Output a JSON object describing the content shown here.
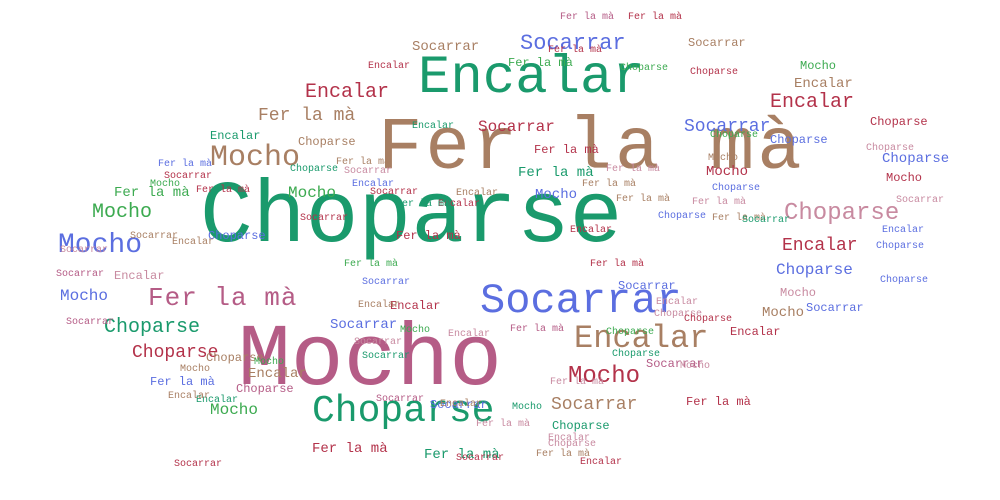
{
  "colors": {
    "green": "#1a9a6c",
    "brown": "#a87f63",
    "mauve": "#b55c86",
    "crimson": "#b3324a",
    "blue": "#5b6ee0",
    "pink": "#c88aa0",
    "lightgreen": "#3caa50"
  },
  "words": [
    {
      "text": "Choparse",
      "color": "green"
    },
    {
      "text": "Mocho",
      "color": "mauve"
    },
    {
      "text": "Fer la mà",
      "color": "brown"
    },
    {
      "text": "Encalar",
      "color": "green"
    },
    {
      "text": "Socarrar",
      "color": "blue"
    },
    {
      "text": "Choparse",
      "color": "green"
    },
    {
      "text": "Encalar",
      "color": "brown"
    },
    {
      "text": "Mocho",
      "color": "brown"
    },
    {
      "text": "Fer la mà",
      "color": "mauve"
    },
    {
      "text": "Choparse",
      "color": "pink"
    },
    {
      "text": "Mocho",
      "color": "blue"
    },
    {
      "text": "Mocho",
      "color": "crimson"
    },
    {
      "text": "Socarrar",
      "color": "blue"
    },
    {
      "text": "Encalar",
      "color": "crimson"
    },
    {
      "text": "Encalar",
      "color": "crimson"
    },
    {
      "text": "Choparse",
      "color": "green"
    },
    {
      "text": "Choparse",
      "color": "crimson"
    },
    {
      "text": "Mocho",
      "color": "lightgreen"
    },
    {
      "text": "Fer la mà",
      "color": "brown"
    },
    {
      "text": "Socarrar",
      "color": "crimson"
    },
    {
      "text": "Socarrar",
      "color": "blue"
    },
    {
      "text": "Encalar",
      "color": "crimson"
    },
    {
      "text": "Socarrar",
      "color": "brown"
    },
    {
      "text": "Choparse",
      "color": "blue"
    },
    {
      "text": "Mocho",
      "color": "lightgreen"
    },
    {
      "text": "Mocho",
      "color": "blue"
    },
    {
      "text": "Mocho",
      "color": "lightgreen"
    },
    {
      "text": "Socarrar",
      "color": "brown"
    },
    {
      "text": "Fer la mà",
      "color": "crimson"
    },
    {
      "text": "Socarrar",
      "color": "brown"
    },
    {
      "text": "Choparse",
      "color": "brown"
    },
    {
      "text": "Mocho",
      "color": "lightgreen"
    },
    {
      "text": "Fer la mà",
      "color": "lightgreen"
    },
    {
      "text": "Fer la mà",
      "color": "green"
    },
    {
      "text": "Mocho",
      "color": "crimson"
    },
    {
      "text": "Choparse",
      "color": "blue"
    },
    {
      "text": "Mocho",
      "color": "blue"
    },
    {
      "text": "Mocho",
      "color": "crimson"
    },
    {
      "text": "Encalar",
      "color": "brown"
    },
    {
      "text": "Encalar",
      "color": "brown"
    },
    {
      "text": "Fer la mà",
      "color": "crimson"
    },
    {
      "text": "Mocho",
      "color": "brown"
    },
    {
      "text": "Mocho",
      "color": "pink"
    },
    {
      "text": "Encalar",
      "color": "green"
    },
    {
      "text": "Fer la mà",
      "color": "lightgreen"
    },
    {
      "text": "Choparse",
      "color": "crimson"
    },
    {
      "text": "Socarrar",
      "color": "blue"
    },
    {
      "text": "Socarrar",
      "color": "mauve"
    },
    {
      "text": "Socarrar",
      "color": "blue"
    },
    {
      "text": "Fer la mà",
      "color": "blue"
    },
    {
      "text": "Choparse",
      "color": "brown"
    },
    {
      "text": "Choparse",
      "color": "green"
    },
    {
      "text": "Fer la mà",
      "color": "green"
    },
    {
      "text": "Choparse",
      "color": "mauve"
    },
    {
      "text": "Encalar",
      "color": "green"
    },
    {
      "text": "Choparse",
      "color": "blue"
    },
    {
      "text": "Encalar",
      "color": "crimson"
    },
    {
      "text": "Fer la mà",
      "color": "mauve"
    },
    {
      "text": "Encalar",
      "color": "crimson"
    },
    {
      "text": "Choparse",
      "color": "blue"
    },
    {
      "text": "Encalar",
      "color": "brown"
    },
    {
      "text": "Encalar",
      "color": "green"
    },
    {
      "text": "Encalar",
      "color": "crimson"
    },
    {
      "text": "Encalar",
      "color": "brown"
    },
    {
      "text": "Socarrar",
      "color": "blue"
    },
    {
      "text": "Fer la mà",
      "color": "lightgreen"
    },
    {
      "text": "Choparse",
      "color": "pink"
    },
    {
      "text": "Socarrar",
      "color": "blue"
    },
    {
      "text": "Socarrar",
      "color": "crimson"
    },
    {
      "text": "Fer la mà",
      "color": "crimson"
    },
    {
      "text": "Fer la mà",
      "color": "brown"
    },
    {
      "text": "Choparse",
      "color": "lightgreen"
    },
    {
      "text": "Choparse",
      "color": "pink"
    },
    {
      "text": "Encalar",
      "color": "crimson"
    },
    {
      "text": "Encalar",
      "color": "blue"
    },
    {
      "text": "Mocho",
      "color": "brown"
    },
    {
      "text": "Socarrar",
      "color": "mauve"
    },
    {
      "text": "Encalar",
      "color": "pink"
    },
    {
      "text": "Mocho",
      "color": "lightgreen"
    },
    {
      "text": "Socarrar",
      "color": "green"
    },
    {
      "text": "Socarrar",
      "color": "mauve"
    },
    {
      "text": "Socarrar",
      "color": "brown"
    },
    {
      "text": "Fer la mà",
      "color": "pink"
    },
    {
      "text": "Choparse",
      "color": "lightgreen"
    },
    {
      "text": "Socarrar",
      "color": "pink"
    },
    {
      "text": "Fer la mà",
      "color": "crimson"
    },
    {
      "text": "Fer la mà",
      "color": "brown"
    },
    {
      "text": "Fer la mà",
      "color": "crimson"
    },
    {
      "text": "Encalar",
      "color": "crimson"
    },
    {
      "text": "Socarrar",
      "color": "mauve"
    },
    {
      "text": "Mocho",
      "color": "brown"
    },
    {
      "text": "Fer la mà",
      "color": "pink"
    },
    {
      "text": "Fer la mà",
      "color": "brown"
    },
    {
      "text": "Socarrar",
      "color": "pink"
    },
    {
      "text": "Choparse",
      "color": "blue"
    },
    {
      "text": "Socarrar",
      "color": "crimson"
    },
    {
      "text": "Encalar",
      "color": "crimson"
    },
    {
      "text": "Fer la mà",
      "color": "green"
    },
    {
      "text": "Mocho",
      "color": "lightgreen"
    },
    {
      "text": "Encalar",
      "color": "brown"
    },
    {
      "text": "Choparse",
      "color": "crimson"
    },
    {
      "text": "Socarrar",
      "color": "blue"
    },
    {
      "text": "Fer la mà",
      "color": "crimson"
    },
    {
      "text": "Fer la mà",
      "color": "brown"
    },
    {
      "text": "Encalar",
      "color": "brown"
    },
    {
      "text": "Choparse",
      "color": "green"
    },
    {
      "text": "Encalar",
      "color": "pink"
    },
    {
      "text": "Choparse",
      "color": "blue"
    },
    {
      "text": "Socarrar",
      "color": "crimson"
    },
    {
      "text": "Choparse",
      "color": "green"
    },
    {
      "text": "Fer la mà",
      "color": "pink"
    },
    {
      "text": "Socarrar",
      "color": "green"
    },
    {
      "text": "Mocho",
      "color": "green"
    },
    {
      "text": "Encalar",
      "color": "pink"
    },
    {
      "text": "Mocho",
      "color": "pink"
    },
    {
      "text": "Fer la mà",
      "color": "brown"
    },
    {
      "text": "Choparse",
      "color": "blue"
    },
    {
      "text": "Socarrar",
      "color": "pink"
    },
    {
      "text": "Fer la mà",
      "color": "blue"
    },
    {
      "text": "Encalar",
      "color": "pink"
    },
    {
      "text": "Encalar",
      "color": "blue"
    },
    {
      "text": "Encalar",
      "color": "brown"
    },
    {
      "text": "Socarrar",
      "color": "crimson"
    },
    {
      "text": "Fer la mà",
      "color": "pink"
    },
    {
      "text": "Choparse",
      "color": "pink"
    },
    {
      "text": "Choparse",
      "color": "lightgreen"
    },
    {
      "text": "Socarrar",
      "color": "crimson"
    },
    {
      "text": "Choparse",
      "color": "crimson"
    },
    {
      "text": "Socarrar",
      "color": "pink"
    },
    {
      "text": "Fer la mà",
      "color": "crimson"
    },
    {
      "text": "Choparse",
      "color": "blue"
    },
    {
      "text": "Fer la mà",
      "color": "crimson"
    },
    {
      "text": "Fer la mà",
      "color": "mauve"
    },
    {
      "text": "Mocho",
      "color": "lightgreen"
    }
  ]
}
